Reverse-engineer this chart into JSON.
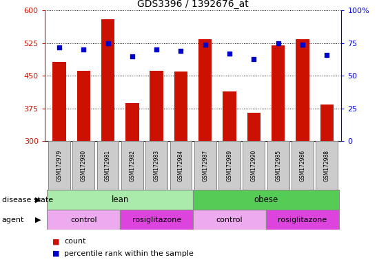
{
  "title": "GDS3396 / 1392676_at",
  "samples": [
    "GSM172979",
    "GSM172980",
    "GSM172981",
    "GSM172982",
    "GSM172983",
    "GSM172984",
    "GSM172987",
    "GSM172989",
    "GSM172990",
    "GSM172985",
    "GSM172986",
    "GSM172988"
  ],
  "counts": [
    482,
    462,
    580,
    388,
    462,
    460,
    535,
    415,
    365,
    520,
    535,
    385
  ],
  "percentiles": [
    72,
    70,
    75,
    65,
    70,
    69,
    74,
    67,
    63,
    75,
    74,
    66
  ],
  "ylim_left": [
    300,
    600
  ],
  "ylim_right": [
    0,
    100
  ],
  "yticks_left": [
    300,
    375,
    450,
    525,
    600
  ],
  "yticks_right": [
    0,
    25,
    50,
    75,
    100
  ],
  "bar_color": "#cc1100",
  "dot_color": "#0000cc",
  "bar_width": 0.55,
  "grid_color": "#000000",
  "disease_state_groups": [
    {
      "label": "lean",
      "span": [
        0,
        6
      ],
      "color": "#aaeaaa"
    },
    {
      "label": "obese",
      "span": [
        6,
        12
      ],
      "color": "#55cc55"
    }
  ],
  "agent_groups": [
    {
      "label": "control",
      "span": [
        0,
        3
      ],
      "color": "#eeaaee"
    },
    {
      "label": "rosiglitazone",
      "span": [
        3,
        6
      ],
      "color": "#dd44dd"
    },
    {
      "label": "control",
      "span": [
        6,
        9
      ],
      "color": "#eeaaee"
    },
    {
      "label": "rosiglitazone",
      "span": [
        9,
        12
      ],
      "color": "#dd44dd"
    }
  ],
  "legend_count_label": "count",
  "legend_percentile_label": "percentile rank within the sample",
  "left_axis_color": "#cc1100",
  "right_axis_color": "#0000cc",
  "disease_label": "disease state",
  "agent_label": "agent",
  "label_box_color": "#cccccc",
  "label_box_edge": "#888888"
}
